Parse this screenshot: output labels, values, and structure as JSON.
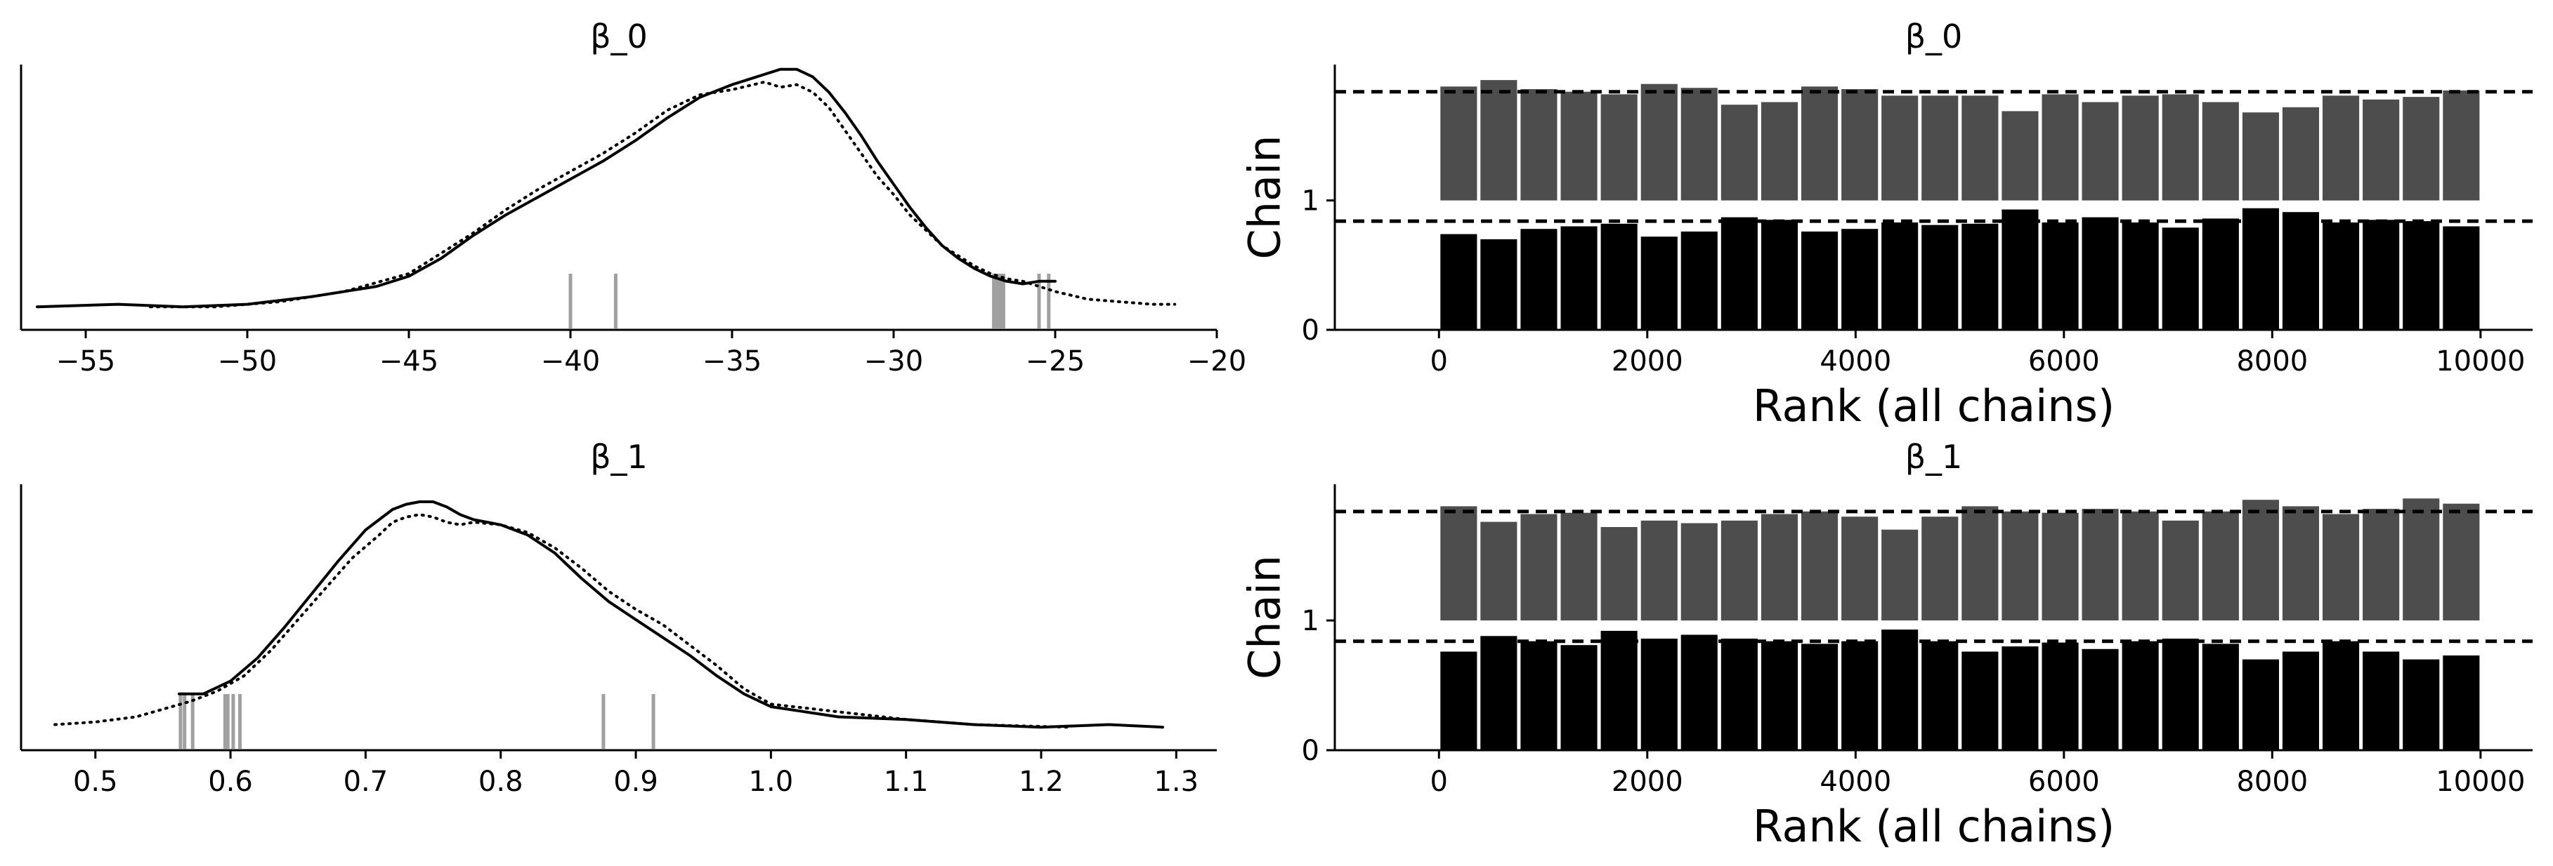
{
  "chart_data": [
    {
      "type": "line",
      "subtype": "kde-trace",
      "title": "β_0",
      "xlabel": "",
      "ylabel": "",
      "xlim": [
        -57,
        -20
      ],
      "xticks": [
        -55,
        -50,
        -45,
        -40,
        -35,
        -30,
        -25,
        -20
      ],
      "xtick_labels": [
        "−55",
        "−50",
        "−45",
        "−40",
        "−35",
        "−30",
        "−25",
        "−20"
      ],
      "yticks_visible": false,
      "series": [
        {
          "style": "solid",
          "color": "#000000",
          "x": [
            -56.5,
            -54,
            -52,
            -50,
            -48,
            -46,
            -45,
            -44,
            -43,
            -42,
            -41,
            -40,
            -39,
            -38,
            -37,
            -36,
            -35,
            -34.5,
            -34,
            -33.5,
            -33,
            -32.5,
            -32,
            -31.5,
            -31,
            -30.5,
            -30,
            -29.5,
            -29,
            -28.5,
            -28,
            -27.5,
            -27,
            -26.5,
            -26,
            -25.5,
            -25
          ],
          "y": [
            0.09,
            0.1,
            0.09,
            0.1,
            0.13,
            0.17,
            0.21,
            0.28,
            0.37,
            0.45,
            0.52,
            0.59,
            0.66,
            0.74,
            0.83,
            0.91,
            0.96,
            0.98,
            1.0,
            1.02,
            1.02,
            0.99,
            0.93,
            0.85,
            0.76,
            0.66,
            0.57,
            0.48,
            0.4,
            0.33,
            0.28,
            0.24,
            0.21,
            0.19,
            0.18,
            0.19,
            0.19
          ]
        },
        {
          "style": "dotted",
          "color": "#000000",
          "x": [
            -53,
            -51,
            -49,
            -47,
            -45,
            -44,
            -43,
            -42,
            -41,
            -40,
            -39,
            -38,
            -37,
            -36,
            -35,
            -34,
            -33.5,
            -33,
            -32.5,
            -32,
            -31.5,
            -31,
            -30.5,
            -30,
            -29.5,
            -29,
            -28.5,
            -28,
            -27.5,
            -27,
            -26.5,
            -26,
            -25.5,
            -25,
            -24,
            -23,
            -22,
            -21.3
          ],
          "y": [
            0.09,
            0.09,
            0.11,
            0.15,
            0.22,
            0.3,
            0.38,
            0.47,
            0.55,
            0.62,
            0.69,
            0.77,
            0.86,
            0.92,
            0.94,
            0.97,
            0.95,
            0.96,
            0.93,
            0.87,
            0.78,
            0.69,
            0.6,
            0.53,
            0.45,
            0.39,
            0.33,
            0.29,
            0.25,
            0.22,
            0.2,
            0.19,
            0.17,
            0.15,
            0.12,
            0.11,
            0.1,
            0.1
          ]
        }
      ],
      "rug": [
        -40,
        -38.6,
        -26.9,
        -26.8,
        -26.7,
        -26.6,
        -25.5,
        -25.2
      ],
      "rug_color": "#a0a0a0"
    },
    {
      "type": "bar",
      "subtype": "rank-plot",
      "title": "β_0",
      "xlabel": "Rank (all chains)",
      "ylabel": "Chain",
      "xlim": [
        -1000,
        10500
      ],
      "xticks": [
        0,
        2000,
        4000,
        6000,
        8000,
        10000
      ],
      "xtick_labels": [
        "0",
        "2000",
        "4000",
        "6000",
        "8000",
        "10000"
      ],
      "yticks": [
        0,
        1
      ],
      "ytick_labels": [
        "0",
        "1"
      ],
      "ylim": [
        0,
        2.05
      ],
      "bin_width": 385,
      "bins_start": [
        0,
        385,
        770,
        1155,
        1540,
        1925,
        2310,
        2695,
        3080,
        3465,
        3850,
        4235,
        4620,
        5005,
        5390,
        5775,
        6160,
        6545,
        6930,
        7315,
        7700,
        8085,
        8470,
        8855,
        9240,
        9625
      ],
      "reference_height": 0.84,
      "series": [
        {
          "name": "0",
          "offset": 0,
          "color": "#000000",
          "values": [
            0.74,
            0.7,
            0.78,
            0.8,
            0.82,
            0.72,
            0.76,
            0.87,
            0.85,
            0.76,
            0.78,
            0.83,
            0.81,
            0.82,
            0.93,
            0.83,
            0.87,
            0.83,
            0.79,
            0.86,
            0.94,
            0.91,
            0.83,
            0.85,
            0.84,
            0.8
          ]
        },
        {
          "name": "1",
          "offset": 1,
          "color": "#4d4d4d",
          "values": [
            0.88,
            0.93,
            0.86,
            0.84,
            0.82,
            0.9,
            0.87,
            0.74,
            0.76,
            0.88,
            0.86,
            0.81,
            0.81,
            0.81,
            0.69,
            0.82,
            0.76,
            0.81,
            0.82,
            0.76,
            0.68,
            0.72,
            0.81,
            0.78,
            0.8,
            0.85
          ]
        }
      ]
    },
    {
      "type": "line",
      "subtype": "kde-trace",
      "title": "β_1",
      "xlabel": "",
      "ylabel": "",
      "xlim": [
        0.445,
        1.33
      ],
      "xticks": [
        0.5,
        0.6,
        0.7,
        0.8,
        0.9,
        1.0,
        1.1,
        1.2,
        1.3
      ],
      "xtick_labels": [
        "0.5",
        "0.6",
        "0.7",
        "0.8",
        "0.9",
        "1.0",
        "1.1",
        "1.2",
        "1.3"
      ],
      "yticks_visible": false,
      "series": [
        {
          "style": "solid",
          "color": "#000000",
          "x": [
            0.562,
            0.58,
            0.6,
            0.62,
            0.64,
            0.66,
            0.68,
            0.7,
            0.72,
            0.73,
            0.74,
            0.75,
            0.76,
            0.77,
            0.78,
            0.79,
            0.8,
            0.82,
            0.84,
            0.86,
            0.88,
            0.9,
            0.92,
            0.94,
            0.96,
            0.98,
            1.0,
            1.05,
            1.1,
            1.15,
            1.2,
            1.25,
            1.29
          ],
          "y": [
            0.22,
            0.22,
            0.27,
            0.36,
            0.48,
            0.61,
            0.74,
            0.86,
            0.94,
            0.96,
            0.97,
            0.97,
            0.95,
            0.92,
            0.9,
            0.89,
            0.88,
            0.84,
            0.77,
            0.67,
            0.58,
            0.51,
            0.44,
            0.37,
            0.29,
            0.22,
            0.17,
            0.13,
            0.12,
            0.1,
            0.09,
            0.1,
            0.09
          ]
        },
        {
          "style": "dotted",
          "color": "#000000",
          "x": [
            0.47,
            0.5,
            0.53,
            0.55,
            0.57,
            0.59,
            0.61,
            0.63,
            0.65,
            0.67,
            0.69,
            0.71,
            0.72,
            0.73,
            0.74,
            0.75,
            0.76,
            0.77,
            0.78,
            0.8,
            0.82,
            0.84,
            0.86,
            0.88,
            0.9,
            0.92,
            0.94,
            0.96,
            0.98,
            1.0,
            1.05,
            1.1,
            1.15,
            1.22
          ],
          "y": [
            0.1,
            0.11,
            0.13,
            0.16,
            0.19,
            0.23,
            0.29,
            0.39,
            0.51,
            0.63,
            0.75,
            0.84,
            0.89,
            0.91,
            0.92,
            0.91,
            0.89,
            0.88,
            0.89,
            0.88,
            0.85,
            0.79,
            0.71,
            0.62,
            0.55,
            0.49,
            0.41,
            0.33,
            0.24,
            0.18,
            0.15,
            0.12,
            0.1,
            0.09
          ]
        }
      ],
      "rug": [
        0.563,
        0.566,
        0.572,
        0.596,
        0.598,
        0.602,
        0.607,
        0.876,
        0.913
      ],
      "rug_color": "#a0a0a0"
    },
    {
      "type": "bar",
      "subtype": "rank-plot",
      "title": "β_1",
      "xlabel": "Rank (all chains)",
      "ylabel": "Chain",
      "xlim": [
        -1000,
        10500
      ],
      "xticks": [
        0,
        2000,
        4000,
        6000,
        8000,
        10000
      ],
      "xtick_labels": [
        "0",
        "2000",
        "4000",
        "6000",
        "8000",
        "10000"
      ],
      "yticks": [
        0,
        1
      ],
      "ytick_labels": [
        "0",
        "1"
      ],
      "ylim": [
        0,
        2.05
      ],
      "bin_width": 385,
      "bins_start": [
        0,
        385,
        770,
        1155,
        1540,
        1925,
        2310,
        2695,
        3080,
        3465,
        3850,
        4235,
        4620,
        5005,
        5390,
        5775,
        6160,
        6545,
        6930,
        7315,
        7700,
        8085,
        8470,
        8855,
        9240,
        9625
      ],
      "reference_height": 0.84,
      "series": [
        {
          "name": "0",
          "offset": 0,
          "color": "#000000",
          "values": [
            0.76,
            0.88,
            0.84,
            0.81,
            0.92,
            0.86,
            0.89,
            0.86,
            0.84,
            0.82,
            0.84,
            0.93,
            0.84,
            0.76,
            0.8,
            0.83,
            0.78,
            0.84,
            0.86,
            0.82,
            0.7,
            0.76,
            0.84,
            0.76,
            0.7,
            0.73
          ]
        },
        {
          "name": "1",
          "offset": 1,
          "color": "#4d4d4d",
          "values": [
            0.88,
            0.76,
            0.82,
            0.83,
            0.72,
            0.77,
            0.75,
            0.77,
            0.82,
            0.84,
            0.8,
            0.7,
            0.8,
            0.88,
            0.84,
            0.83,
            0.86,
            0.84,
            0.77,
            0.84,
            0.93,
            0.88,
            0.82,
            0.86,
            0.94,
            0.9
          ]
        }
      ]
    }
  ]
}
